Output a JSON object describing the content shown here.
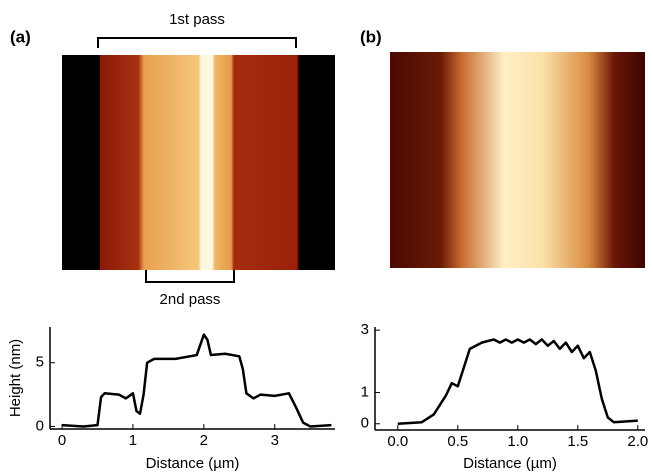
{
  "chart_data": [
    {
      "type": "line",
      "panel_label": "(a)",
      "annotations": [
        "1st pass",
        "2nd pass"
      ],
      "xlabel": "Distance (µm)",
      "ylabel": "Height (nm)",
      "color": "#000000",
      "x": [
        0,
        0.3,
        0.5,
        0.55,
        0.6,
        0.8,
        0.9,
        1.0,
        1.05,
        1.1,
        1.15,
        1.2,
        1.3,
        1.6,
        1.9,
        2.0,
        2.05,
        2.1,
        2.3,
        2.5,
        2.55,
        2.6,
        2.7,
        2.8,
        3.0,
        3.2,
        3.3,
        3.4,
        3.5,
        3.8
      ],
      "values": [
        0.1,
        0,
        0.1,
        2.3,
        2.6,
        2.5,
        2.2,
        2.6,
        1.2,
        1.0,
        2.5,
        5.0,
        5.3,
        5.3,
        5.6,
        7.2,
        6.8,
        5.6,
        5.7,
        5.5,
        4.5,
        2.6,
        2.2,
        2.5,
        2.4,
        2.6,
        1.5,
        0.3,
        0,
        0.1
      ],
      "xlim": [
        -0.17,
        3.85
      ],
      "ylim": [
        -0.2,
        7.8
      ],
      "xticks": [
        0,
        1,
        2,
        3
      ],
      "yticks": [
        0,
        5
      ]
    },
    {
      "type": "line",
      "panel_label": "(b)",
      "xlabel": "Distance (µm)",
      "color": "#000000",
      "x": [
        0,
        0.2,
        0.3,
        0.4,
        0.45,
        0.5,
        0.55,
        0.6,
        0.7,
        0.8,
        0.85,
        0.9,
        0.95,
        1.0,
        1.05,
        1.1,
        1.15,
        1.2,
        1.25,
        1.3,
        1.35,
        1.4,
        1.45,
        1.5,
        1.55,
        1.6,
        1.65,
        1.7,
        1.75,
        1.8,
        2.0
      ],
      "values": [
        0,
        0.05,
        0.3,
        0.9,
        1.3,
        1.2,
        1.8,
        2.4,
        2.6,
        2.7,
        2.6,
        2.7,
        2.6,
        2.7,
        2.6,
        2.7,
        2.55,
        2.7,
        2.5,
        2.65,
        2.4,
        2.6,
        2.3,
        2.5,
        2.1,
        2.3,
        1.7,
        0.8,
        0.2,
        0.05,
        0.1
      ],
      "xlim": [
        -0.19,
        2.06
      ],
      "ylim": [
        -0.2,
        3.1
      ],
      "xticks": [
        {
          "value": 0,
          "label": "0.0"
        },
        {
          "value": 0.5,
          "label": "0.5"
        },
        {
          "value": 1,
          "label": "1.0"
        },
        {
          "value": 1.5,
          "label": "1.5"
        },
        {
          "value": 2,
          "label": "2.0"
        }
      ],
      "yticks": [
        0,
        1,
        3
      ]
    }
  ]
}
